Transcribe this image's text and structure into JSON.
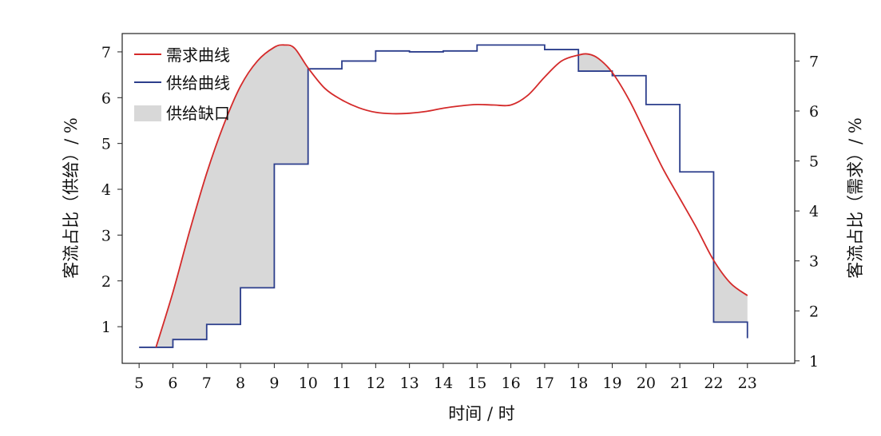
{
  "chart_data": {
    "type": "line",
    "xlabel": "时间 / 时",
    "ylabel_left": "客流占比（供给）/ %",
    "ylabel_right": "客流占比（需求）/ %",
    "xlim": [
      4.5,
      24.4
    ],
    "x_ticks": [
      5,
      6,
      7,
      8,
      9,
      10,
      11,
      12,
      13,
      14,
      15,
      16,
      17,
      18,
      19,
      20,
      21,
      22,
      23
    ],
    "ylim_left": [
      0.2,
      7.4
    ],
    "y_ticks_left": [
      1,
      2,
      3,
      4,
      5,
      6,
      7
    ],
    "ylim_right": [
      0.95,
      7.55
    ],
    "y_ticks_right": [
      1,
      2,
      3,
      4,
      5,
      6,
      7
    ],
    "grid": false,
    "legend_position": "top-left",
    "series": [
      {
        "name": "需求曲线",
        "color": "#d42a2a",
        "axis": "left",
        "x": [
          5.5,
          6.0,
          6.5,
          7.0,
          7.5,
          8.0,
          8.5,
          9.0,
          9.3,
          9.6,
          10.0,
          10.5,
          11.0,
          11.5,
          12.0,
          12.5,
          13.0,
          13.5,
          14.0,
          14.5,
          15.0,
          15.5,
          16.0,
          16.5,
          17.0,
          17.5,
          18.0,
          18.3,
          18.6,
          19.0,
          19.5,
          20.0,
          20.5,
          21.0,
          21.5,
          22.0,
          22.5,
          23.0
        ],
        "y": [
          0.55,
          1.75,
          3.1,
          4.35,
          5.4,
          6.25,
          6.8,
          7.1,
          7.15,
          7.08,
          6.65,
          6.2,
          5.95,
          5.78,
          5.68,
          5.65,
          5.66,
          5.7,
          5.77,
          5.82,
          5.85,
          5.84,
          5.84,
          6.05,
          6.45,
          6.8,
          6.93,
          6.95,
          6.85,
          6.55,
          5.95,
          5.2,
          4.45,
          3.8,
          3.15,
          2.45,
          1.95,
          1.68
        ]
      },
      {
        "name": "供给曲线",
        "color": "#2c3e8c",
        "axis": "left",
        "step": "post",
        "x": [
          5,
          6,
          7,
          8,
          9,
          10,
          11,
          12,
          13,
          14,
          15,
          16,
          17,
          18,
          19,
          20,
          21,
          22,
          23
        ],
        "y": [
          0.55,
          0.72,
          1.05,
          1.85,
          4.55,
          6.63,
          6.8,
          7.02,
          7.0,
          7.02,
          7.15,
          7.15,
          7.05,
          6.58,
          6.48,
          5.85,
          4.38,
          1.1,
          0.75
        ]
      }
    ],
    "area": {
      "name": "供给缺口",
      "color": "#d8d8d8",
      "description_of_fill": "between demand and supply where demand exceeds supply"
    }
  }
}
